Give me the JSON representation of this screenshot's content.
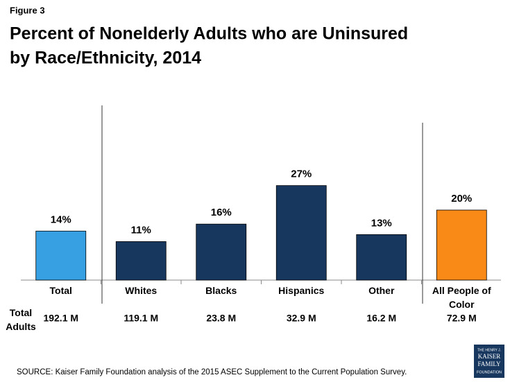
{
  "figure_label": "Figure 3",
  "chart_data": {
    "type": "bar",
    "title": [
      "Percent of Nonelderly Adults who are Uninsured",
      "by Race/Ethnicity, 2014"
    ],
    "categories": [
      "Total",
      "Whites",
      "Blacks",
      "Hispanics",
      "Other",
      "All People of Color"
    ],
    "values": [
      14,
      11,
      16,
      27,
      13,
      20
    ],
    "value_labels": [
      "14%",
      "11%",
      "16%",
      "27%",
      "13%",
      "20%"
    ],
    "colors": [
      "#37a0e2",
      "#17375e",
      "#17375e",
      "#17375e",
      "#17375e",
      "#f98a17"
    ],
    "row_label": "Total Adults",
    "row_values": [
      "192.1 M",
      "119.1 M",
      "23.8 M",
      "32.9 M",
      "16.2 M",
      "72.9 M"
    ]
  },
  "source": "SOURCE: Kaiser Family Foundation analysis of  the 2015 ASEC Supplement to the Current Population Survey.",
  "logo": [
    "THE HENRY J.",
    "KAISER",
    "FAMILY",
    "FOUNDATION"
  ]
}
